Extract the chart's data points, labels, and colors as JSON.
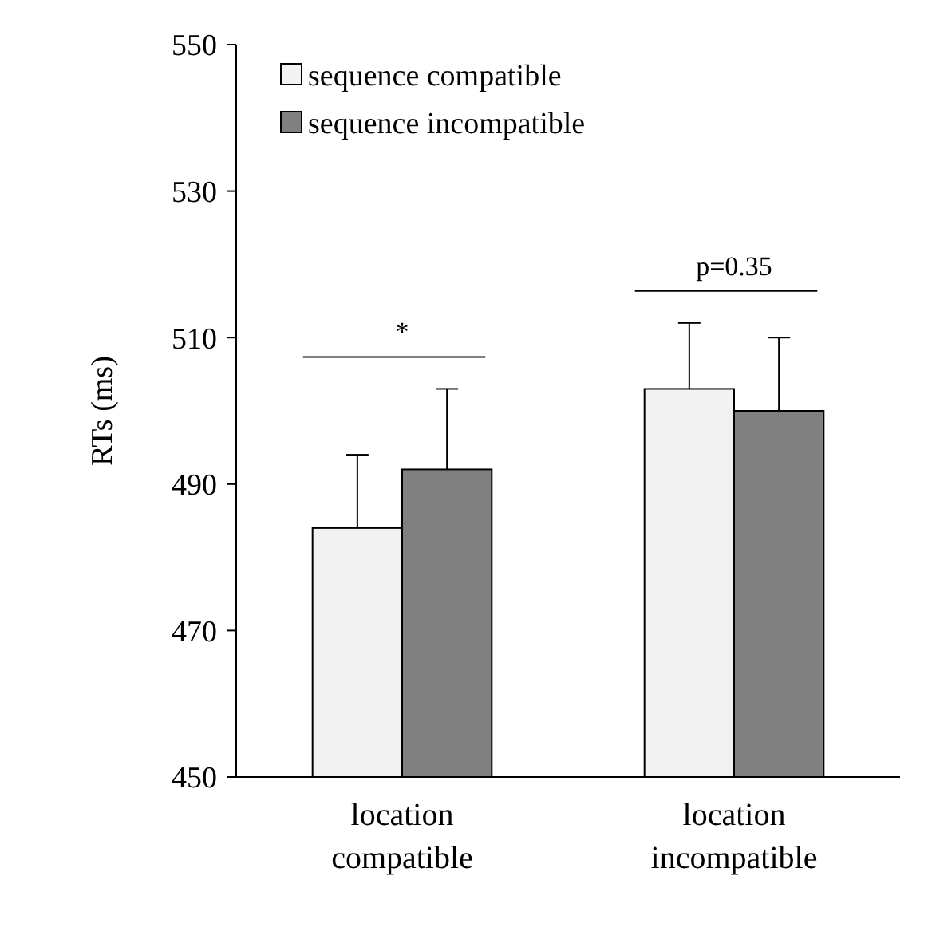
{
  "chart_data": {
    "type": "bar",
    "ylabel": "RTs (ms)",
    "categories": [
      "location compatible",
      "location incompatible"
    ],
    "series": [
      {
        "name": "sequence compatible",
        "color": "#f2f2f2",
        "values": [
          484,
          503
        ],
        "errors": [
          [
            484,
            494
          ],
          [
            503,
            512
          ]
        ]
      },
      {
        "name": "sequence incompatible",
        "color": "#808080",
        "values": [
          492,
          500
        ],
        "errors": [
          [
            492,
            503
          ],
          [
            500,
            510
          ]
        ]
      }
    ],
    "ylim": [
      450,
      550
    ],
    "yticks": [
      450,
      470,
      490,
      510,
      530,
      550
    ],
    "legend": "top left",
    "grid": false,
    "annotations": [
      "*",
      "p=0.35"
    ]
  }
}
